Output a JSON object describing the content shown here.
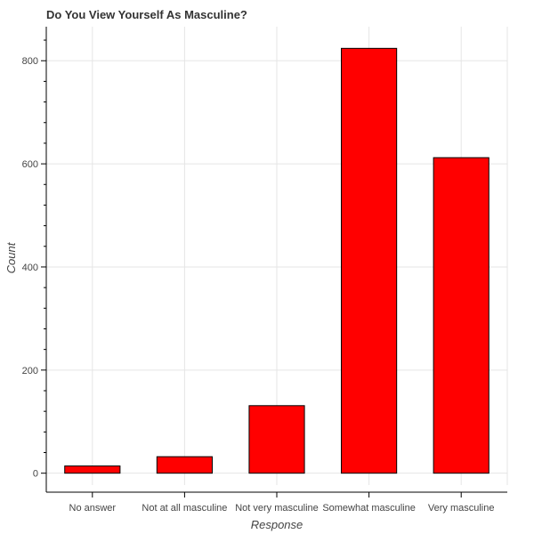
{
  "chart_data": {
    "type": "bar",
    "title": "Do You View Yourself As Masculine?",
    "xlabel": "Response",
    "ylabel": "Count",
    "categories": [
      "No answer",
      "Not at all masculine",
      "Not very masculine",
      "Somewhat masculine",
      "Very masculine"
    ],
    "values": [
      14,
      32,
      131,
      824,
      612
    ],
    "ylim": [
      -23,
      866
    ],
    "yticks": [
      0,
      200,
      400,
      600,
      800
    ],
    "grid": true,
    "bar_color": "#ff0000",
    "bar_outline": "#000000"
  }
}
